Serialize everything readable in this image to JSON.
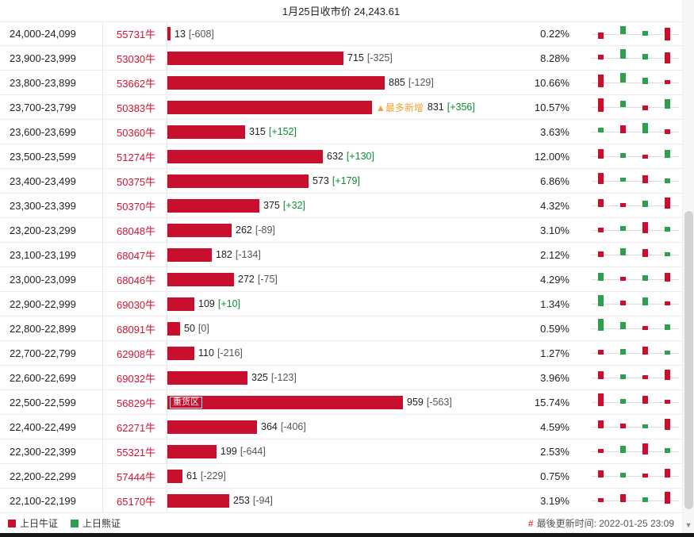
{
  "title": "1月25日收市价 24,243.61",
  "legend": {
    "bull_label": "上日牛证",
    "bear_label": "上日熊证"
  },
  "footer": {
    "hash": "#",
    "updated": "最後更新时间: 2022-01-25 23:09"
  },
  "colors": {
    "bar_red": "#c8102e",
    "candle_green": "#2e9e4f",
    "annotation_orange": "#f0a330",
    "positive_change": "#0a8f2f"
  },
  "rows": [
    {
      "range": "24,000-24,099",
      "code": "55731牛",
      "value": 13,
      "change": "[-608]",
      "change_type": "neg",
      "pct": "0.22%",
      "candles": [
        [
          "r",
          12,
          8
        ],
        [
          "g",
          4,
          10
        ],
        [
          "g",
          10,
          6
        ],
        [
          "r",
          6,
          16
        ]
      ]
    },
    {
      "range": "23,900-23,999",
      "code": "53030牛",
      "value": 715,
      "change": "[-325]",
      "change_type": "neg",
      "pct": "8.28%",
      "candles": [
        [
          "r",
          10,
          6
        ],
        [
          "g",
          3,
          12
        ],
        [
          "g",
          9,
          7
        ],
        [
          "r",
          7,
          14
        ]
      ]
    },
    {
      "range": "23,800-23,899",
      "code": "53662牛",
      "value": 885,
      "change": "[-129]",
      "change_type": "neg",
      "pct": "10.66%",
      "candles": [
        [
          "r",
          4,
          16
        ],
        [
          "g",
          2,
          12
        ],
        [
          "g",
          8,
          8
        ],
        [
          "r",
          11,
          5
        ]
      ]
    },
    {
      "range": "23,700-23,799",
      "code": "50383牛",
      "value": 831,
      "change": "[+356]",
      "change_type": "pos",
      "pct": "10.57%",
      "annotation": "▲最多新增",
      "candles": [
        [
          "r",
          3,
          17
        ],
        [
          "g",
          6,
          8
        ],
        [
          "r",
          12,
          6
        ],
        [
          "g",
          4,
          12
        ]
      ]
    },
    {
      "range": "23,600-23,699",
      "code": "50360牛",
      "value": 315,
      "change": "[+152]",
      "change_type": "pos",
      "pct": "3.63%",
      "candles": [
        [
          "g",
          9,
          6
        ],
        [
          "r",
          6,
          10
        ],
        [
          "g",
          3,
          13
        ],
        [
          "r",
          11,
          6
        ]
      ]
    },
    {
      "range": "23,500-23,599",
      "code": "51274牛",
      "value": 632,
      "change": "[+130]",
      "change_type": "pos",
      "pct": "12.00%",
      "candles": [
        [
          "r",
          5,
          12
        ],
        [
          "g",
          10,
          6
        ],
        [
          "r",
          12,
          5
        ],
        [
          "g",
          6,
          10
        ]
      ]
    },
    {
      "range": "23,400-23,499",
      "code": "50375牛",
      "value": 573,
      "change": "[+179]",
      "change_type": "pos",
      "pct": "6.86%",
      "candles": [
        [
          "r",
          4,
          14
        ],
        [
          "g",
          10,
          5
        ],
        [
          "r",
          7,
          10
        ],
        [
          "g",
          11,
          6
        ]
      ]
    },
    {
      "range": "23,300-23,399",
      "code": "50370牛",
      "value": 375,
      "change": "[+32]",
      "change_type": "pos",
      "pct": "4.32%",
      "candles": [
        [
          "r",
          6,
          10
        ],
        [
          "r",
          11,
          5
        ],
        [
          "g",
          8,
          8
        ],
        [
          "r",
          4,
          14
        ]
      ]
    },
    {
      "range": "23,200-23,299",
      "code": "68048牛",
      "value": 262,
      "change": "[-89]",
      "change_type": "neg",
      "pct": "3.10%",
      "candles": [
        [
          "r",
          11,
          6
        ],
        [
          "g",
          9,
          6
        ],
        [
          "r",
          4,
          14
        ],
        [
          "g",
          10,
          6
        ]
      ]
    },
    {
      "range": "23,100-23,199",
      "code": "68047牛",
      "value": 182,
      "change": "[-134]",
      "change_type": "neg",
      "pct": "2.12%",
      "candles": [
        [
          "r",
          10,
          7
        ],
        [
          "g",
          6,
          9
        ],
        [
          "r",
          7,
          10
        ],
        [
          "g",
          11,
          5
        ]
      ]
    },
    {
      "range": "23,000-23,099",
      "code": "68046牛",
      "value": 272,
      "change": "[-75]",
      "change_type": "neg",
      "pct": "4.29%",
      "candles": [
        [
          "g",
          6,
          10
        ],
        [
          "r",
          11,
          5
        ],
        [
          "g",
          9,
          7
        ],
        [
          "r",
          6,
          11
        ]
      ]
    },
    {
      "range": "22,900-22,999",
      "code": "69030牛",
      "value": 109,
      "change": "[+10]",
      "change_type": "pos",
      "pct": "1.34%",
      "candles": [
        [
          "g",
          3,
          14
        ],
        [
          "r",
          10,
          6
        ],
        [
          "g",
          6,
          10
        ],
        [
          "r",
          11,
          5
        ]
      ]
    },
    {
      "range": "22,800-22,899",
      "code": "68091牛",
      "value": 50,
      "change": "[0]",
      "change_type": "zero",
      "pct": "0.59%",
      "candles": [
        [
          "g",
          2,
          15
        ],
        [
          "g",
          6,
          9
        ],
        [
          "r",
          11,
          5
        ],
        [
          "g",
          9,
          7
        ]
      ]
    },
    {
      "range": "22,700-22,799",
      "code": "62908牛",
      "value": 110,
      "change": "[-216]",
      "change_type": "neg",
      "pct": "1.27%",
      "candles": [
        [
          "r",
          10,
          6
        ],
        [
          "g",
          9,
          7
        ],
        [
          "r",
          6,
          10
        ],
        [
          "g",
          11,
          5
        ]
      ]
    },
    {
      "range": "22,600-22,699",
      "code": "69032牛",
      "value": 325,
      "change": "[-123]",
      "change_type": "neg",
      "pct": "3.96%",
      "candles": [
        [
          "r",
          6,
          10
        ],
        [
          "g",
          10,
          6
        ],
        [
          "r",
          11,
          5
        ],
        [
          "r",
          4,
          13
        ]
      ]
    },
    {
      "range": "22,500-22,599",
      "code": "56829牛",
      "value": 959,
      "change": "[-563]",
      "change_type": "neg",
      "pct": "15.74%",
      "bar_label": "重货区",
      "candles": [
        [
          "r",
          3,
          16
        ],
        [
          "g",
          10,
          6
        ],
        [
          "r",
          6,
          10
        ],
        [
          "r",
          11,
          5
        ]
      ]
    },
    {
      "range": "22,400-22,499",
      "code": "62271牛",
      "value": 364,
      "change": "[-406]",
      "change_type": "neg",
      "pct": "4.59%",
      "candles": [
        [
          "r",
          6,
          10
        ],
        [
          "r",
          10,
          6
        ],
        [
          "g",
          11,
          5
        ],
        [
          "r",
          4,
          14
        ]
      ]
    },
    {
      "range": "22,300-22,399",
      "code": "55321牛",
      "value": 199,
      "change": "[-644]",
      "change_type": "neg",
      "pct": "2.53%",
      "candles": [
        [
          "r",
          11,
          5
        ],
        [
          "g",
          7,
          9
        ],
        [
          "r",
          4,
          14
        ],
        [
          "g",
          10,
          6
        ]
      ]
    },
    {
      "range": "22,200-22,299",
      "code": "57444牛",
      "value": 61,
      "change": "[-229]",
      "change_type": "neg",
      "pct": "0.75%",
      "candles": [
        [
          "r",
          7,
          9
        ],
        [
          "g",
          10,
          6
        ],
        [
          "r",
          11,
          5
        ],
        [
          "r",
          5,
          11
        ]
      ]
    },
    {
      "range": "22,100-22,199",
      "code": "65170牛",
      "value": 253,
      "change": "[-94]",
      "change_type": "neg",
      "pct": "3.19%",
      "candles": [
        [
          "r",
          11,
          5
        ],
        [
          "r",
          6,
          10
        ],
        [
          "g",
          10,
          6
        ],
        [
          "r",
          3,
          15
        ]
      ]
    }
  ],
  "chart_data": {
    "type": "bar",
    "orientation": "horizontal",
    "title": "1月25日收市价 24,243.61",
    "categories": [
      "24,000-24,099",
      "23,900-23,999",
      "23,800-23,899",
      "23,700-23,799",
      "23,600-23,699",
      "23,500-23,599",
      "23,400-23,499",
      "23,300-23,399",
      "23,200-23,299",
      "23,100-23,199",
      "23,000-23,099",
      "22,900-22,999",
      "22,800-22,899",
      "22,700-22,799",
      "22,600-22,699",
      "22,500-22,599",
      "22,400-22,499",
      "22,300-22,399",
      "22,200-22,299",
      "22,100-22,199"
    ],
    "series": [
      {
        "name": "value",
        "values": [
          13,
          715,
          885,
          831,
          315,
          632,
          573,
          375,
          262,
          182,
          272,
          109,
          50,
          110,
          325,
          959,
          364,
          199,
          61,
          253
        ]
      },
      {
        "name": "change",
        "values": [
          -608,
          -325,
          -129,
          356,
          152,
          130,
          179,
          32,
          -89,
          -134,
          -75,
          10,
          0,
          -216,
          -123,
          -563,
          -406,
          -644,
          -229,
          -94
        ]
      },
      {
        "name": "percent",
        "values": [
          0.22,
          8.28,
          10.66,
          10.57,
          3.63,
          12.0,
          6.86,
          4.32,
          3.1,
          2.12,
          4.29,
          1.34,
          0.59,
          1.27,
          3.96,
          15.74,
          4.59,
          2.53,
          0.75,
          3.19
        ]
      }
    ],
    "annotations": [
      {
        "category": "23,700-23,799",
        "label": "▲最多新增"
      },
      {
        "category": "22,500-22,599",
        "label": "重货区"
      }
    ],
    "legend": [
      "上日牛证",
      "上日熊证"
    ],
    "legend_position": "bottom-left",
    "bar_color": "#c8102e"
  }
}
